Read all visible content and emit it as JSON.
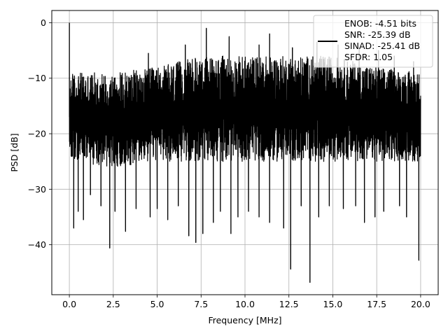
{
  "chart_data": {
    "type": "line",
    "title": "",
    "xlabel": "Frequency [MHz]",
    "ylabel": "PSD [dB]",
    "xlim": [
      -1,
      21
    ],
    "ylim": [
      -49,
      2.2
    ],
    "xticks": [
      0.0,
      2.5,
      5.0,
      7.5,
      10.0,
      12.5,
      15.0,
      17.5,
      20.0
    ],
    "xtick_labels": [
      "0.0",
      "2.5",
      "5.0",
      "7.5",
      "10.0",
      "12.5",
      "15.0",
      "17.5",
      "20.0"
    ],
    "yticks": [
      0,
      -10,
      -20,
      -30,
      -40
    ],
    "ytick_labels": [
      "0",
      "−10",
      "−20",
      "−30",
      "−40"
    ],
    "grid": true,
    "legend_position": "top-right",
    "legend": [
      "ENOB: -4.51 bits",
      "SNR: -25.39 dB",
      "SINAD: -25.41 dB",
      "SFDR: 1.05"
    ],
    "series": [
      {
        "color": "#000000",
        "band_lower_envelope": [
          [
            0.0,
            -25
          ],
          [
            2.5,
            -26
          ],
          [
            5.0,
            -25
          ],
          [
            7.5,
            -25
          ],
          [
            10.0,
            -25
          ],
          [
            12.5,
            -25
          ],
          [
            15.0,
            -25
          ],
          [
            17.5,
            -25
          ],
          [
            20.0,
            -25
          ]
        ],
        "band_upper_envelope": [
          [
            0.0,
            -9
          ],
          [
            2.5,
            -9
          ],
          [
            5.0,
            -8
          ],
          [
            7.5,
            -6
          ],
          [
            10.0,
            -6
          ],
          [
            12.5,
            -6
          ],
          [
            15.0,
            -6
          ],
          [
            17.5,
            -8
          ],
          [
            20.0,
            -9
          ]
        ],
        "spikes": [
          [
            0.0,
            0.0
          ],
          [
            0.1,
            -24.0
          ],
          [
            0.25,
            -37.0
          ],
          [
            0.5,
            -34.0
          ],
          [
            0.8,
            -35.5
          ],
          [
            1.2,
            -31.0
          ],
          [
            1.8,
            -33.0
          ],
          [
            2.3,
            -40.6
          ],
          [
            2.6,
            -34.0
          ],
          [
            3.2,
            -37.6
          ],
          [
            3.8,
            -33.5
          ],
          [
            4.6,
            -35.0
          ],
          [
            5.0,
            -33.5
          ],
          [
            5.6,
            -35.5
          ],
          [
            6.2,
            -33.0
          ],
          [
            6.8,
            -38.4
          ],
          [
            7.2,
            -39.6
          ],
          [
            7.6,
            -38.0
          ],
          [
            8.2,
            -36.0
          ],
          [
            8.6,
            -34.0
          ],
          [
            9.2,
            -38.0
          ],
          [
            9.6,
            -35.0
          ],
          [
            10.2,
            -34.0
          ],
          [
            10.8,
            -35.0
          ],
          [
            11.4,
            -36.0
          ],
          [
            12.2,
            -37.0
          ],
          [
            12.6,
            -44.4
          ],
          [
            13.2,
            -33.0
          ],
          [
            13.7,
            -46.8
          ],
          [
            14.2,
            -35.0
          ],
          [
            14.8,
            -33.0
          ],
          [
            15.6,
            -33.5
          ],
          [
            16.3,
            -33.0
          ],
          [
            16.8,
            -36.0
          ],
          [
            17.4,
            -35.0
          ],
          [
            17.9,
            -34.0
          ],
          [
            18.8,
            -33.0
          ],
          [
            19.2,
            -35.0
          ],
          [
            19.9,
            -42.8
          ],
          [
            4.5,
            -5.5
          ],
          [
            6.6,
            -4.0
          ],
          [
            7.8,
            -1.0
          ],
          [
            9.1,
            -2.5
          ],
          [
            10.8,
            -4.0
          ],
          [
            11.4,
            -2.0
          ],
          [
            12.7,
            -4.5
          ],
          [
            14.1,
            -3.5
          ],
          [
            15.3,
            -4.0
          ],
          [
            16.5,
            -4.5
          ],
          [
            17.6,
            -5.0
          ],
          [
            18.5,
            -6.0
          ],
          [
            19.6,
            -7.0
          ]
        ]
      }
    ]
  }
}
